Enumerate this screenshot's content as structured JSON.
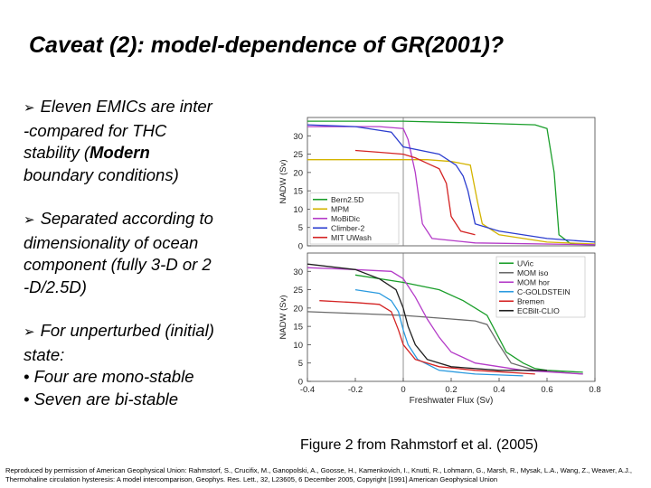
{
  "title": "Caveat (2): model-dependence of GR(2001)?",
  "bullets": [
    {
      "lines": [
        "Eleven EMICs are inter",
        "-compared for THC",
        "stability ("
      ],
      "bold": "Modern",
      "tail": "boundary conditions)"
    },
    {
      "lines": [
        "Separated according to",
        "dimensionality of ocean",
        "component (fully 3-D or 2",
        "-D/2.5D)"
      ]
    },
    {
      "lines": [
        "For unperturbed (initial)",
        "state:"
      ],
      "subs": [
        "• Four are mono-stable",
        "• Seven are bi-stable"
      ]
    }
  ],
  "caption": "Figure 2 from Rahmstorf et al. (2005)",
  "footer": "Reproduced by permission of American Geophysical Union: Rahmstorf, S., Crucifix, M., Ganopolski, A., Goosse, H., Kamenkovich, I., Knutti, R., Lohmann, G., Marsh, R., Mysak, L.A., Wang, Z., Weaver, A.J., Thermohaline circulation hysteresis: A model intercomparison, Geophys. Res. Lett., 32, L23605, 6 December 2005, Copyright [1991] American Geophysical Union",
  "colors": {
    "Bern2.5D": "#1a9e2a",
    "MPM": "#d4b400",
    "MoBiDic": "#b43bc8",
    "Climber-2": "#2c3ecf",
    "MIT UWash": "#d42424",
    "UVic": "#1a9e2a",
    "MOM iso": "#6a6a6a",
    "MOM hor": "#b43bc8",
    "C-GOLDSTEIN": "#2a9adf",
    "Bremen": "#d42424",
    "ECBilt-CLIO": "#202020"
  },
  "chart_data": [
    {
      "type": "line",
      "panel": "top",
      "ylabel": "NADW (Sv)",
      "xlim": [
        -0.4,
        0.8
      ],
      "ylim": [
        0,
        35
      ],
      "yticks": [
        0,
        5,
        10,
        15,
        20,
        25,
        30
      ],
      "legend_position": "bottom-left",
      "series": [
        {
          "name": "Bern2.5D",
          "points": [
            [
              -0.4,
              34
            ],
            [
              0.0,
              34
            ],
            [
              0.3,
              33.5
            ],
            [
              0.55,
              33
            ],
            [
              0.6,
              32
            ],
            [
              0.63,
              20
            ],
            [
              0.65,
              3
            ],
            [
              0.7,
              0.5
            ],
            [
              0.8,
              0.3
            ]
          ]
        },
        {
          "name": "MPM",
          "points": [
            [
              -0.4,
              23.5
            ],
            [
              0.0,
              23.5
            ],
            [
              0.1,
              23.5
            ],
            [
              0.2,
              23
            ],
            [
              0.28,
              22
            ],
            [
              0.31,
              12
            ],
            [
              0.33,
              6
            ],
            [
              0.4,
              3
            ],
            [
              0.6,
              1
            ],
            [
              0.8,
              0.5
            ]
          ]
        },
        {
          "name": "MoBiDic",
          "points": [
            [
              -0.4,
              32.5
            ],
            [
              -0.1,
              32.5
            ],
            [
              0.0,
              32
            ],
            [
              0.02,
              29
            ],
            [
              0.05,
              20
            ],
            [
              0.08,
              6
            ],
            [
              0.12,
              2
            ],
            [
              0.3,
              0.8
            ],
            [
              0.8,
              0.3
            ]
          ]
        },
        {
          "name": "Climber-2",
          "points": [
            [
              -0.4,
              33
            ],
            [
              -0.2,
              32.5
            ],
            [
              -0.05,
              31
            ],
            [
              0.0,
              27
            ],
            [
              0.15,
              25
            ],
            [
              0.22,
              22
            ],
            [
              0.25,
              19
            ],
            [
              0.27,
              15
            ],
            [
              0.3,
              6
            ],
            [
              0.4,
              4
            ],
            [
              0.6,
              2
            ],
            [
              0.8,
              1
            ]
          ]
        },
        {
          "name": "MIT UWash",
          "points": [
            [
              -0.2,
              26
            ],
            [
              -0.1,
              25.5
            ],
            [
              0.0,
              25
            ],
            [
              0.05,
              24
            ],
            [
              0.1,
              22.5
            ],
            [
              0.15,
              21
            ],
            [
              0.18,
              17
            ],
            [
              0.2,
              8
            ],
            [
              0.24,
              4
            ],
            [
              0.3,
              3
            ]
          ]
        }
      ]
    },
    {
      "type": "line",
      "panel": "bottom",
      "xlabel": "Freshwater Flux (Sv)",
      "ylabel": "NADW (Sv)",
      "xlim": [
        -0.4,
        0.8
      ],
      "ylim": [
        0,
        35
      ],
      "xticks": [
        -0.4,
        -0.2,
        0,
        0.2,
        0.4,
        0.6,
        0.8
      ],
      "yticks": [
        0,
        5,
        10,
        15,
        20,
        25,
        30
      ],
      "legend_position": "top-right",
      "series": [
        {
          "name": "UVic",
          "points": [
            [
              -0.2,
              29
            ],
            [
              0.0,
              27
            ],
            [
              0.15,
              25
            ],
            [
              0.25,
              22
            ],
            [
              0.35,
              18
            ],
            [
              0.43,
              8
            ],
            [
              0.5,
              5
            ],
            [
              0.55,
              3.5
            ],
            [
              0.6,
              3
            ],
            [
              0.75,
              2.5
            ]
          ]
        },
        {
          "name": "MOM iso",
          "points": [
            [
              -0.4,
              19
            ],
            [
              -0.2,
              18.5
            ],
            [
              0.0,
              18
            ],
            [
              0.1,
              17.5
            ],
            [
              0.2,
              17
            ],
            [
              0.3,
              16.5
            ],
            [
              0.35,
              15.5
            ],
            [
              0.4,
              10
            ],
            [
              0.45,
              5
            ],
            [
              0.55,
              3
            ],
            [
              0.75,
              2
            ]
          ]
        },
        {
          "name": "MOM hor",
          "points": [
            [
              -0.4,
              31
            ],
            [
              -0.2,
              30.5
            ],
            [
              -0.05,
              30
            ],
            [
              0.0,
              28
            ],
            [
              0.05,
              23
            ],
            [
              0.1,
              17
            ],
            [
              0.15,
              12
            ],
            [
              0.2,
              8
            ],
            [
              0.3,
              5
            ],
            [
              0.5,
              3
            ],
            [
              0.75,
              2
            ]
          ]
        },
        {
          "name": "C-GOLDSTEIN",
          "points": [
            [
              -0.2,
              25
            ],
            [
              -0.1,
              24
            ],
            [
              -0.05,
              22
            ],
            [
              -0.02,
              19
            ],
            [
              0.0,
              14
            ],
            [
              0.02,
              10
            ],
            [
              0.06,
              6
            ],
            [
              0.15,
              3
            ],
            [
              0.3,
              2
            ],
            [
              0.5,
              1.5
            ]
          ]
        },
        {
          "name": "Bremen",
          "points": [
            [
              -0.35,
              22
            ],
            [
              -0.2,
              21.5
            ],
            [
              -0.1,
              21
            ],
            [
              -0.05,
              19
            ],
            [
              -0.02,
              14
            ],
            [
              0.0,
              10
            ],
            [
              0.05,
              6
            ],
            [
              0.15,
              4
            ],
            [
              0.3,
              3
            ],
            [
              0.55,
              2
            ]
          ]
        },
        {
          "name": "ECBilt-CLIO",
          "points": [
            [
              -0.4,
              32
            ],
            [
              -0.2,
              30.5
            ],
            [
              -0.1,
              28
            ],
            [
              -0.03,
              25
            ],
            [
              0.0,
              20
            ],
            [
              0.02,
              15
            ],
            [
              0.05,
              10
            ],
            [
              0.1,
              6
            ],
            [
              0.2,
              4
            ],
            [
              0.4,
              3
            ],
            [
              0.6,
              3
            ]
          ]
        }
      ]
    }
  ]
}
